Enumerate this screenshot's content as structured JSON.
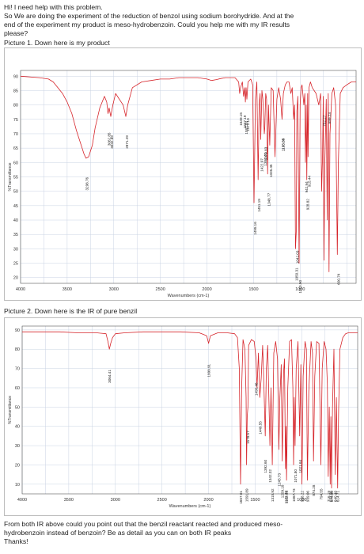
{
  "post": {
    "intro_line1": "Hi! I need help with this problem.",
    "intro_line2": "So We are doing the experiment of the reduction of benzol using sodium borohydride. And at the",
    "intro_line3": "end of the experiment my product is meso-hydrobenzoin. Could you help me with my IR results",
    "intro_line4": "please?",
    "picture1_caption": "Picture 1. Down here is my product",
    "picture2_caption": "Picture 2. Down here is the IR of pure benzil",
    "outro_line1": "From both IR above could you point out that the benzil reactant reacted and produced meso-",
    "outro_line2": "hydrobenzoin instead of benzoin? Be as detail as you can on both IR peaks",
    "outro_line3": "Thanks!"
  },
  "colors": {
    "trace": "#d6242a",
    "grid": "#c9d3e3",
    "axis": "#555555"
  },
  "chart_data": [
    {
      "type": "line",
      "xlabel": "Wavenumbers (cm-1)",
      "ylabel": "%Transmittance",
      "xlim": [
        4000,
        400
      ],
      "ylim": [
        18,
        92
      ],
      "x_reversed": true,
      "grid": true,
      "x_ticks": [
        "4000",
        "3500",
        "3000",
        "2500",
        "2000",
        "1500",
        "1000"
      ],
      "y_ticks": [
        "90",
        "85",
        "80",
        "75",
        "70",
        "65",
        "60",
        "55",
        "50",
        "45",
        "40",
        "35",
        "30",
        "25",
        "20"
      ],
      "peak_labels": [
        "3298.76",
        "3062.85",
        "3032.69",
        "2871.29",
        "1649.15",
        "1607.19",
        "1587.84",
        "1572.19",
        "1495.16",
        "1451.19",
        "1422.97",
        "1384.42",
        "1379.83",
        "1348.77",
        "1326.45",
        "1195.05",
        "1193.64",
        "1050.31",
        "1042.03",
        "1010.90",
        "942.94",
        "928.82",
        "915.44",
        "752.27",
        "699.23",
        "600.74"
      ],
      "series": [
        {
          "x": [
            4000,
            3800,
            3700,
            3650,
            3600,
            3550,
            3500,
            3450,
            3400,
            3350,
            3320,
            3298,
            3270,
            3230,
            3200,
            3150,
            3100,
            3075,
            3062,
            3050,
            3032,
            3010,
            2980,
            2940,
            2900,
            2871,
            2850,
            2800,
            2700,
            2600,
            2500,
            2400,
            2300,
            2200,
            2100,
            2000,
            1950,
            1900,
            1850,
            1800,
            1750,
            1700,
            1660,
            1649,
            1640,
            1620,
            1607,
            1595,
            1588,
            1580,
            1572,
            1560,
            1530,
            1510,
            1495,
            1480,
            1465,
            1451,
            1440,
            1430,
            1423,
            1410,
            1400,
            1385,
            1380,
            1370,
            1360,
            1349,
            1340,
            1326,
            1310,
            1290,
            1270,
            1250,
            1230,
            1210,
            1195,
            1180,
            1160,
            1140,
            1120,
            1100,
            1085,
            1070,
            1060,
            1050,
            1042,
            1035,
            1025,
            1011,
            1000,
            990,
            980,
            960,
            950,
            943,
            935,
            929,
            920,
            915,
            905,
            890,
            870,
            850,
            830,
            800,
            780,
            770,
            760,
            752,
            745,
            735,
            720,
            710,
            699,
            690,
            680,
            660,
            640,
            620,
            601,
            590,
            570,
            540,
            500,
            450,
            400
          ],
          "y": [
            90,
            89.5,
            89,
            88,
            86,
            84,
            81,
            77,
            71,
            66,
            63,
            61.5,
            62,
            66,
            72,
            79,
            83,
            81,
            77,
            79,
            76,
            80,
            84,
            82,
            80,
            76,
            80,
            86,
            88,
            88.5,
            89,
            89,
            89.5,
            89.5,
            89.5,
            89,
            88.5,
            88.8,
            89.2,
            89.5,
            89.5,
            89.5,
            88,
            84,
            86,
            88,
            83,
            86,
            81,
            86,
            82,
            88,
            89,
            87,
            46,
            82,
            88,
            54,
            80,
            84,
            68,
            85,
            82,
            70,
            72,
            84,
            82,
            56,
            80,
            66,
            86,
            85,
            62,
            82,
            86,
            82,
            75,
            84,
            87,
            88,
            88,
            84,
            86,
            75,
            80,
            30,
            36,
            78,
            83,
            25,
            80,
            86,
            87,
            80,
            84,
            60,
            80,
            54,
            84,
            62,
            86,
            88,
            86,
            85,
            84,
            80,
            84,
            50,
            62,
            83,
            26,
            60,
            82,
            40,
            84,
            22,
            70,
            84,
            86,
            80,
            28,
            60,
            84,
            86,
            87,
            88,
            88
          ]
        }
      ]
    },
    {
      "type": "line",
      "xlabel": "Wavenumbers (cm-1)",
      "ylabel": "%Transmittance",
      "xlim": [
        4000,
        400
      ],
      "ylim": [
        5,
        92
      ],
      "x_reversed": true,
      "grid": true,
      "x_ticks": [
        "4000",
        "3500",
        "3000",
        "2500",
        "2000",
        "1500",
        "1000"
      ],
      "y_ticks": [
        "90",
        "80",
        "70",
        "60",
        "50",
        "40",
        "30",
        "20",
        "10"
      ],
      "peak_labels": [
        "3064.41",
        "1999.91",
        "1657.01",
        "1591.89",
        "1578.57",
        "1490.46",
        "1449.55",
        "1392.60",
        "1342.32",
        "1315.92",
        "1245.73",
        "1209.18",
        "1173.70",
        "1162.94",
        "1087.73",
        "1071.80",
        "1021.64",
        "998.22",
        "939.06",
        "874.28",
        "794.55",
        "716.19",
        "694.96",
        "679.90",
        "640.48",
        "614.71"
      ],
      "series": [
        {
          "x": [
            4000,
            3800,
            3600,
            3400,
            3200,
            3100,
            3080,
            3064,
            3050,
            3030,
            3000,
            2900,
            2700,
            2500,
            2300,
            2100,
            2020,
            2000,
            1980,
            1900,
            1800,
            1720,
            1690,
            1670,
            1657,
            1645,
            1630,
            1610,
            1597,
            1592,
            1585,
            1578,
            1570,
            1540,
            1510,
            1490,
            1480,
            1465,
            1450,
            1435,
            1420,
            1405,
            1392,
            1380,
            1365,
            1342,
            1330,
            1316,
            1300,
            1280,
            1260,
            1246,
            1235,
            1220,
            1209,
            1195,
            1185,
            1174,
            1168,
            1163,
            1150,
            1130,
            1110,
            1095,
            1088,
            1080,
            1072,
            1060,
            1040,
            1022,
            1010,
            998,
            985,
            965,
            950,
            939,
            925,
            900,
            885,
            874,
            860,
            840,
            815,
            795,
            780,
            760,
            740,
            725,
            716,
            705,
            695,
            688,
            680,
            670,
            655,
            640,
            628,
            615,
            605,
            590,
            560,
            530,
            500,
            460,
            420,
            400
          ],
          "y": [
            89,
            89,
            89,
            88.5,
            88.5,
            88,
            84,
            80,
            83,
            86,
            88,
            88.5,
            89,
            89,
            89,
            88.5,
            87,
            83,
            87,
            88.5,
            88.5,
            88,
            86,
            70,
            10,
            60,
            85,
            80,
            55,
            20,
            45,
            50,
            82,
            85,
            84,
            75,
            60,
            78,
            55,
            65,
            82,
            60,
            35,
            70,
            82,
            30,
            60,
            20,
            78,
            84,
            75,
            28,
            55,
            72,
            22,
            68,
            75,
            18,
            40,
            12,
            60,
            84,
            85,
            60,
            20,
            55,
            30,
            70,
            84,
            35,
            72,
            10,
            66,
            84,
            80,
            12,
            58,
            84,
            78,
            22,
            66,
            84,
            83,
            20,
            70,
            84,
            80,
            62,
            14,
            50,
            10,
            45,
            8,
            50,
            80,
            15,
            55,
            8,
            48,
            80,
            86,
            88,
            88.5,
            88.5,
            88.5,
            88.5
          ]
        }
      ]
    }
  ]
}
